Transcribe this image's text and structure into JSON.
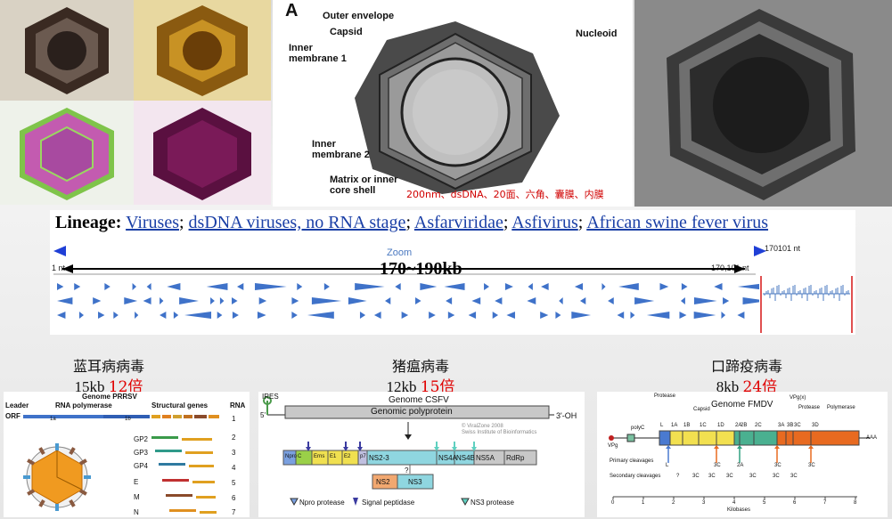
{
  "diagram": {
    "panel_letter": "A",
    "labels": {
      "outer_envelope": "Outer envelope",
      "capsid": "Capsid",
      "inner_membrane_1": "Inner membrane 1",
      "nucleoid": "Nucleoid",
      "inner_membrane_2": "Inner membrane 2",
      "matrix": "Matrix or inner core shell"
    },
    "caption": "200nm、dsDNA、20面、六角、囊膜、内膜"
  },
  "genome_browser": {
    "lineage_label": "Lineage:",
    "lineage_links": [
      "Viruses",
      "dsDNA viruses, no RNA stage",
      "Asfarviridae",
      "Asfivirus",
      "African swine fever virus"
    ],
    "zoom_label": "Zoom",
    "end_nt": "170101 nt",
    "left_nt": "1 nt",
    "right_nt": "170,101 nt",
    "range_label": "170~190kb",
    "colors": {
      "gene": "#3f72c9",
      "arrow": "#1f3fd6"
    }
  },
  "viruses": [
    {
      "name": "蓝耳病病毒",
      "size": "15kb",
      "ratio": "12倍"
    },
    {
      "name": "猪瘟病毒",
      "size": "12kb",
      "ratio": "15倍"
    },
    {
      "name": "口蹄疫病毒",
      "size": "8kb",
      "ratio": "24倍"
    }
  ],
  "prrsv": {
    "title": "Genome PRRSV",
    "headers": [
      "Leader",
      "RNA polymerase",
      "Structural genes",
      "RNA"
    ],
    "orf_label": "ORF",
    "orf_1a": "1a",
    "orf_1b": "1b",
    "rows": [
      "GP2",
      "GP3",
      "GP4",
      "E",
      "M",
      "N"
    ],
    "rna_numbers": [
      "1",
      "2",
      "3",
      "4",
      "5",
      "6",
      "7"
    ]
  },
  "csfv": {
    "ires": "IRES",
    "five_prime": "5'",
    "three_prime": "3'-OH",
    "title": "Genome CSFV",
    "polyprotein": "Genomic polyprotein",
    "credit": "© ViralZone 2008\nSwiss Institute of Bioinformatics",
    "proteins": [
      "Npro",
      "C",
      "Erns",
      "E1",
      "E2",
      "p7",
      "NS2-3",
      "NS4A",
      "NS4B",
      "NS5A",
      "RdRp"
    ],
    "cleaved": [
      "NS2",
      "NS3"
    ],
    "question": "?",
    "legend": [
      "Npro protease",
      "Signal peptidase",
      "NS3 protease"
    ]
  },
  "fmdv": {
    "title": "Genome FMDV",
    "top_labels": [
      "Protease",
      "Capsid",
      "VPg(x)",
      "Protease",
      "Polymerase"
    ],
    "segments": [
      "L",
      "1A",
      "1B",
      "1C",
      "1D",
      "2A",
      "2B",
      "2C",
      "3A",
      "3B",
      "3C",
      "3D"
    ],
    "polyc": "polyC",
    "vpg": "VPg",
    "aaa": "AAA",
    "primary": "Primary cleavages",
    "secondary": "Secondary cleavages",
    "primary_marks": [
      "L",
      "3C",
      "2A",
      "3C",
      "3C"
    ],
    "secondary_marks": [
      "?",
      "3C",
      "3C",
      "3C",
      "3C",
      "3C",
      "3C"
    ],
    "axis_ticks": [
      "0",
      "1",
      "2",
      "3",
      "4",
      "5",
      "6",
      "7",
      "8"
    ],
    "axis_label": "Kilobases"
  }
}
